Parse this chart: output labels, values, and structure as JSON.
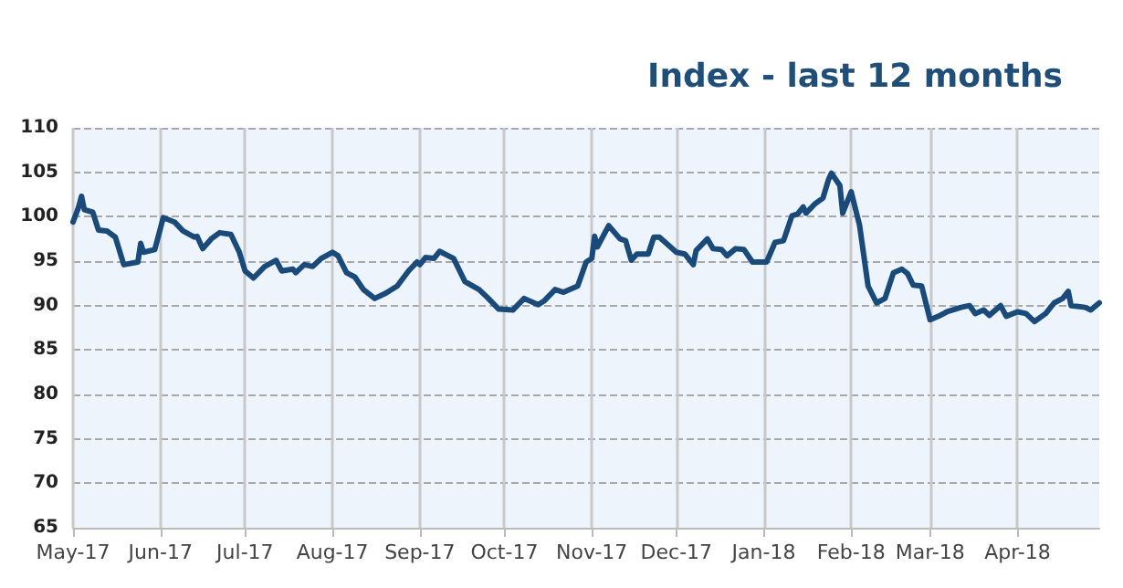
{
  "chart_data": {
    "type": "line",
    "title": "Index - last 12 months",
    "x": [
      "2017-05-01",
      "2017-05-03",
      "2017-05-04",
      "2017-05-05",
      "2017-05-08",
      "2017-05-10",
      "2017-05-13",
      "2017-05-16",
      "2017-05-19",
      "2017-05-24",
      "2017-05-25",
      "2017-05-26",
      "2017-05-30",
      "2017-06-02",
      "2017-06-06",
      "2017-06-09",
      "2017-06-13",
      "2017-06-14",
      "2017-06-16",
      "2017-06-19",
      "2017-06-22",
      "2017-06-26",
      "2017-06-29",
      "2017-07-01",
      "2017-07-04",
      "2017-07-08",
      "2017-07-12",
      "2017-07-14",
      "2017-07-18",
      "2017-07-19",
      "2017-07-22",
      "2017-07-25",
      "2017-07-28",
      "2017-08-01",
      "2017-08-03",
      "2017-08-06",
      "2017-08-09",
      "2017-08-12",
      "2017-08-16",
      "2017-08-20",
      "2017-08-24",
      "2017-08-28",
      "2017-08-31",
      "2017-09-01",
      "2017-09-03",
      "2017-09-06",
      "2017-09-08",
      "2017-09-13",
      "2017-09-17",
      "2017-09-22",
      "2017-09-25",
      "2017-09-29",
      "2017-10-04",
      "2017-10-08",
      "2017-10-13",
      "2017-10-15",
      "2017-10-19",
      "2017-10-22",
      "2017-10-27",
      "2017-10-30",
      "2017-11-01",
      "2017-11-02",
      "2017-11-03",
      "2017-11-07",
      "2017-11-11",
      "2017-11-13",
      "2017-11-15",
      "2017-11-17",
      "2017-11-21",
      "2017-11-23",
      "2017-11-25",
      "2017-12-01",
      "2017-12-04",
      "2017-12-07",
      "2017-12-08",
      "2017-12-12",
      "2017-12-14",
      "2017-12-17",
      "2017-12-19",
      "2017-12-22",
      "2017-12-25",
      "2017-12-28",
      "2018-01-02",
      "2018-01-05",
      "2018-01-08",
      "2018-01-11",
      "2018-01-13",
      "2018-01-15",
      "2018-01-16",
      "2018-01-19",
      "2018-01-22",
      "2018-01-24",
      "2018-01-25",
      "2018-01-28",
      "2018-01-29",
      "2018-02-01",
      "2018-02-04",
      "2018-02-07",
      "2018-02-10",
      "2018-02-13",
      "2018-02-16",
      "2018-02-19",
      "2018-02-21",
      "2018-02-23",
      "2018-02-26",
      "2018-03-01",
      "2018-03-04",
      "2018-03-07",
      "2018-03-12",
      "2018-03-15",
      "2018-03-17",
      "2018-03-20",
      "2018-03-22",
      "2018-03-26",
      "2018-03-28",
      "2018-04-01",
      "2018-04-04",
      "2018-04-07",
      "2018-04-11",
      "2018-04-14",
      "2018-04-17",
      "2018-04-19",
      "2018-04-20",
      "2018-04-25",
      "2018-04-27",
      "2018-04-30"
    ],
    "series": [
      {
        "color": "#1a4a7a",
        "values": [
          99.4,
          101.1,
          102.3,
          100.8,
          100.5,
          98.5,
          98.4,
          97.7,
          94.6,
          94.9,
          97.0,
          96.0,
          96.3,
          99.9,
          99.4,
          98.4,
          97.7,
          97.8,
          96.4,
          97.5,
          98.2,
          98.0,
          96.0,
          93.9,
          93.1,
          94.4,
          95.1,
          93.9,
          94.1,
          93.7,
          94.6,
          94.4,
          95.3,
          96.0,
          95.6,
          93.7,
          93.2,
          91.8,
          90.8,
          91.4,
          92.2,
          93.9,
          94.9,
          94.6,
          95.4,
          95.3,
          96.1,
          95.3,
          92.7,
          91.8,
          90.9,
          89.6,
          89.5,
          90.8,
          90.1,
          90.5,
          91.8,
          91.5,
          92.2,
          94.9,
          95.3,
          97.8,
          96.6,
          99.0,
          97.5,
          97.3,
          95.1,
          95.8,
          95.8,
          97.7,
          97.7,
          96.0,
          95.8,
          94.6,
          96.2,
          97.5,
          96.4,
          96.3,
          95.6,
          96.4,
          96.3,
          94.9,
          94.9,
          97.1,
          97.3,
          100.1,
          100.3,
          101.1,
          100.4,
          101.4,
          102.1,
          104.2,
          104.9,
          103.5,
          100.4,
          102.8,
          99.0,
          92.2,
          90.3,
          90.8,
          93.7,
          94.1,
          93.6,
          92.3,
          92.2,
          88.4,
          88.8,
          89.3,
          89.8,
          90.0,
          89.1,
          89.5,
          88.9,
          90.0,
          88.8,
          89.3,
          89.1,
          88.2,
          89.1,
          90.3,
          90.8,
          91.6,
          90.0,
          89.8,
          89.5,
          90.3
        ]
      }
    ],
    "xlim": [
      "2017-05-01",
      "2018-04-30"
    ],
    "xticks": [
      {
        "value": "2017-05-01",
        "label": "May-17"
      },
      {
        "value": "2017-06-01",
        "label": "Jun-17"
      },
      {
        "value": "2017-07-01",
        "label": "Jul-17"
      },
      {
        "value": "2017-08-01",
        "label": "Aug-17"
      },
      {
        "value": "2017-09-01",
        "label": "Sep-17"
      },
      {
        "value": "2017-10-01",
        "label": "Oct-17"
      },
      {
        "value": "2017-11-01",
        "label": "Nov-17"
      },
      {
        "value": "2017-12-01",
        "label": "Dec-17"
      },
      {
        "value": "2018-01-01",
        "label": "Jan-18"
      },
      {
        "value": "2018-02-01",
        "label": "Feb-18"
      },
      {
        "value": "2018-03-01",
        "label": "Mar-18"
      },
      {
        "value": "2018-04-01",
        "label": "Apr-18"
      }
    ],
    "ylim": [
      65,
      110
    ],
    "yticks": [
      65,
      70,
      75,
      80,
      85,
      90,
      95,
      100,
      105,
      110
    ],
    "grid": true,
    "marker": "none",
    "line_style": "solid"
  }
}
